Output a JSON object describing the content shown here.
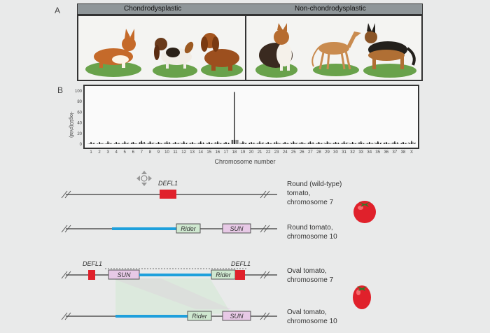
{
  "panel_a": {
    "label": "A",
    "group_left": "Chondrodysplastic",
    "group_right": "Non-chondrodysplastic",
    "dogs_left": [
      "corgi",
      "basset-hound",
      "dachshund"
    ],
    "dogs_right": [
      "collie",
      "greyhound",
      "german-shepherd"
    ]
  },
  "panel_b": {
    "label": "B",
    "ylabel": "-log10(pVal)",
    "xlabel": "Chromosome number"
  },
  "chart_data": {
    "type": "bar",
    "xlabel": "Chromosome number",
    "ylabel": "-log10(pVal)",
    "ylim": [
      0,
      100
    ],
    "yticks": [
      "100",
      "80",
      "60",
      "40",
      "20",
      "0"
    ],
    "categories": [
      "1",
      "2",
      "3",
      "4",
      "5",
      "6",
      "7",
      "8",
      "9",
      "10",
      "11",
      "12",
      "13",
      "14",
      "15",
      "16",
      "17",
      "18",
      "19",
      "20",
      "21",
      "22",
      "23",
      "24",
      "25",
      "26",
      "27",
      "28",
      "29",
      "30",
      "31",
      "32",
      "33",
      "34",
      "35",
      "36",
      "37",
      "38",
      "X"
    ],
    "values": [
      4,
      4,
      5,
      4,
      5,
      4,
      6,
      5,
      4,
      5,
      4,
      5,
      4,
      5,
      4,
      5,
      4,
      98,
      5,
      4,
      5,
      4,
      5,
      4,
      5,
      4,
      5,
      4,
      5,
      4,
      5,
      4,
      5,
      4,
      5,
      4,
      5,
      4,
      6
    ]
  },
  "tomato": {
    "rows": [
      {
        "caption": [
          "Round (wild-type)",
          "tomato,",
          "chromosome 7"
        ]
      },
      {
        "caption": [
          "Round tomato,",
          "chromosome 10"
        ]
      },
      {
        "caption": [
          "Oval tomato,",
          "chromosome 7"
        ]
      },
      {
        "caption": [
          "Oval tomato,",
          "chromosome 10"
        ]
      }
    ],
    "gene_defl1": "DEFL1",
    "gene_sun": "SUN",
    "gene_rider": "Rider",
    "colors": {
      "red": "#e0212b",
      "blue": "#1ea0dc",
      "green": "#cfe8d0",
      "pink": "#e7c9e6"
    }
  }
}
